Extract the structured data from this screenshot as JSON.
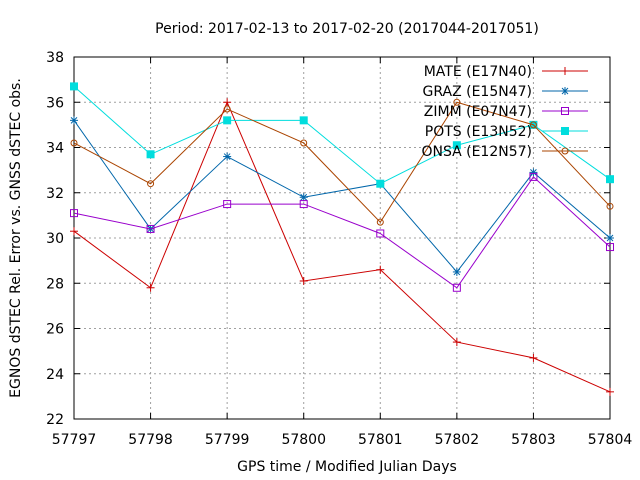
{
  "chart_data": {
    "type": "line",
    "title": "Period: 2017-02-13 to 2017-02-20 (2017044-2017051)",
    "xlabel": "GPS time / Modified Julian Days",
    "ylabel": "EGNOS dSTEC Rel. Error vs. GNSS dSTEC obs.",
    "x": [
      57797,
      57798,
      57799,
      57800,
      57801,
      57802,
      57803,
      57804
    ],
    "xlim": [
      57797,
      57804
    ],
    "ylim": [
      22,
      38
    ],
    "yticks": [
      22,
      24,
      26,
      28,
      30,
      32,
      34,
      36,
      38
    ],
    "grid": true,
    "legend_position": "top-right",
    "series": [
      {
        "name": "MATE (E17N40)",
        "color": "#cc0000",
        "marker": "plus",
        "values": [
          30.3,
          27.8,
          36.0,
          28.1,
          28.6,
          25.4,
          24.7,
          23.2
        ]
      },
      {
        "name": "GRAZ (E15N47)",
        "color": "#0066aa",
        "marker": "star",
        "values": [
          35.2,
          30.4,
          33.6,
          31.8,
          32.4,
          28.5,
          32.9,
          30.0
        ]
      },
      {
        "name": "ZIMM (E07N47)",
        "color": "#9900cc",
        "marker": "open-square",
        "values": [
          31.1,
          30.4,
          31.5,
          31.5,
          30.2,
          27.8,
          32.7,
          29.6
        ]
      },
      {
        "name": "POTS (E13N52)",
        "color": "#00dddd",
        "marker": "filled-square",
        "values": [
          36.7,
          33.7,
          35.2,
          35.2,
          32.4,
          34.1,
          35.0,
          32.6
        ]
      },
      {
        "name": "ONSA (E12N57)",
        "color": "#aa4400",
        "marker": "open-circle",
        "values": [
          34.2,
          32.4,
          35.7,
          34.2,
          30.7,
          36.0,
          35.0,
          31.4
        ]
      }
    ]
  }
}
